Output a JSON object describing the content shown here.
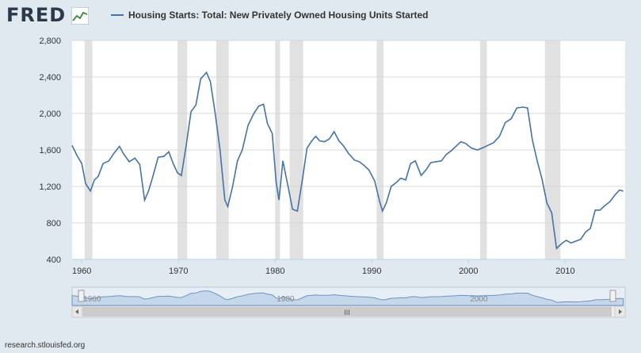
{
  "header": {
    "logo": "FRED",
    "logo_icon": "chart-line-icon"
  },
  "legend": {
    "label": "Housing Starts: Total: New Privately Owned Housing Units Started",
    "color": "#4572a7"
  },
  "footer": {
    "text": "research.stlouisfed.org"
  },
  "colors": {
    "series": "#4572a7",
    "recession": "#e1e1e1",
    "plot_bg": "#ffffff",
    "page_bg": "#e1e9f0",
    "navigator_fill": "#c5d7ea"
  },
  "navigator": {
    "labels": [
      "1960",
      "1980",
      "2000"
    ],
    "scroll_grip": "III"
  },
  "chart_data": {
    "type": "line",
    "title": "",
    "xlabel": "",
    "ylabel": "",
    "xlim": [
      1959,
      2016.2
    ],
    "ylim": [
      400,
      2800
    ],
    "yticks": [
      400,
      800,
      1200,
      1600,
      2000,
      2400,
      2800
    ],
    "ytick_labels": [
      "400",
      "800",
      "1,200",
      "1,600",
      "2,000",
      "2,400",
      "2,800"
    ],
    "xticks": [
      1960,
      1970,
      1980,
      1990,
      2000,
      2010
    ],
    "grid": true,
    "legend_position": "top",
    "recessions": [
      [
        1960.3,
        1961.1
      ],
      [
        1969.9,
        1970.9
      ],
      [
        1973.9,
        1975.2
      ],
      [
        1980.0,
        1980.5
      ],
      [
        1981.5,
        1982.9
      ],
      [
        1990.5,
        1991.2
      ],
      [
        2001.2,
        2001.9
      ],
      [
        2007.9,
        2009.5
      ]
    ],
    "series": [
      {
        "name": "Housing Starts: Total: New Privately Owned Housing Units Started",
        "x": [
          1959.0,
          1959.5,
          1960.0,
          1960.4,
          1960.9,
          1961.3,
          1961.7,
          1962.2,
          1962.8,
          1963.3,
          1963.9,
          1964.3,
          1964.9,
          1965.5,
          1966.0,
          1966.5,
          1966.9,
          1967.3,
          1967.9,
          1968.5,
          1969.0,
          1969.5,
          1969.9,
          1970.3,
          1970.8,
          1971.3,
          1971.8,
          1972.3,
          1972.9,
          1973.3,
          1973.8,
          1974.3,
          1974.8,
          1975.1,
          1975.6,
          1976.1,
          1976.6,
          1977.2,
          1977.8,
          1978.3,
          1978.8,
          1979.2,
          1979.7,
          1980.1,
          1980.4,
          1980.8,
          1981.3,
          1981.8,
          1982.3,
          1982.8,
          1983.3,
          1983.8,
          1984.2,
          1984.6,
          1985.1,
          1985.6,
          1986.1,
          1986.6,
          1987.1,
          1987.6,
          1988.2,
          1988.7,
          1989.2,
          1989.7,
          1990.3,
          1990.8,
          1991.1,
          1991.5,
          1992.0,
          1992.5,
          1993.0,
          1993.5,
          1994.0,
          1994.5,
          1995.1,
          1995.6,
          1996.1,
          1996.6,
          1997.2,
          1997.7,
          1998.2,
          1998.7,
          1999.2,
          1999.7,
          2000.3,
          2000.9,
          2001.4,
          2002.0,
          2002.6,
          2003.2,
          2003.8,
          2004.4,
          2005.0,
          2005.6,
          2006.1,
          2006.6,
          2007.1,
          2007.6,
          2008.1,
          2008.6,
          2009.1,
          2009.6,
          2010.1,
          2010.6,
          2011.1,
          2011.6,
          2012.1,
          2012.6,
          2013.1,
          2013.6,
          2014.1,
          2014.6,
          2015.1,
          2015.6,
          2016.0
        ],
        "y": [
          1650,
          1540,
          1450,
          1230,
          1150,
          1270,
          1310,
          1450,
          1480,
          1560,
          1640,
          1560,
          1470,
          1510,
          1440,
          1050,
          1150,
          1290,
          1520,
          1530,
          1580,
          1440,
          1350,
          1320,
          1650,
          2020,
          2090,
          2380,
          2450,
          2350,
          2000,
          1600,
          1050,
          980,
          1200,
          1480,
          1600,
          1870,
          2000,
          2080,
          2100,
          1890,
          1780,
          1250,
          1050,
          1480,
          1220,
          950,
          930,
          1260,
          1620,
          1700,
          1750,
          1700,
          1690,
          1720,
          1800,
          1700,
          1640,
          1560,
          1490,
          1470,
          1430,
          1380,
          1260,
          1040,
          930,
          1020,
          1200,
          1240,
          1290,
          1270,
          1450,
          1480,
          1320,
          1380,
          1460,
          1470,
          1480,
          1550,
          1590,
          1640,
          1690,
          1670,
          1620,
          1600,
          1620,
          1650,
          1680,
          1750,
          1900,
          1940,
          2060,
          2070,
          2060,
          1710,
          1480,
          1280,
          1020,
          910,
          520,
          570,
          610,
          580,
          600,
          620,
          700,
          740,
          940,
          940,
          990,
          1030,
          1100,
          1160,
          1150
        ]
      }
    ]
  }
}
